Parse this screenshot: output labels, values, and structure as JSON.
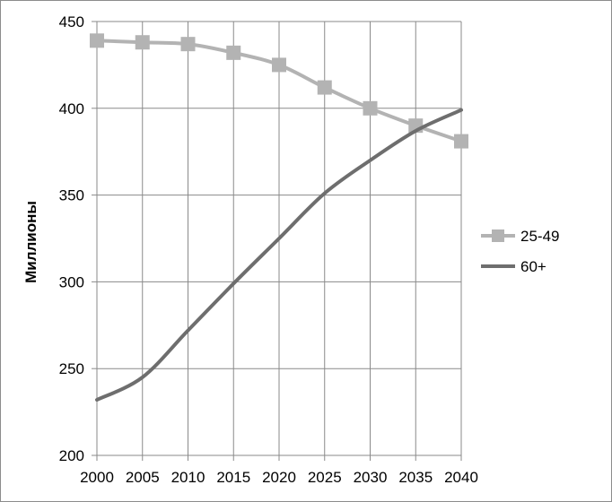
{
  "chart_data": {
    "type": "line",
    "title": "",
    "xlabel": "",
    "ylabel": "Миллионы",
    "x": [
      2000,
      2005,
      2010,
      2015,
      2020,
      2025,
      2030,
      2035,
      2040
    ],
    "xlim": [
      2000,
      2040
    ],
    "ylim": [
      200,
      450
    ],
    "yticks": [
      200,
      250,
      300,
      350,
      400,
      450
    ],
    "xticks": [
      2000,
      2005,
      2010,
      2015,
      2020,
      2025,
      2030,
      2035,
      2040
    ],
    "grid": "vertical",
    "legend_position": "right",
    "series": [
      {
        "name": "25-49",
        "values": [
          439,
          438,
          437,
          432,
          425,
          412,
          400,
          390,
          381
        ],
        "color": "#b3b3b3",
        "marker": "square"
      },
      {
        "name": "60+",
        "values": [
          232,
          245,
          272,
          299,
          325,
          351,
          370,
          387,
          399
        ],
        "color": "#6e6e6e",
        "marker": "none"
      }
    ]
  }
}
